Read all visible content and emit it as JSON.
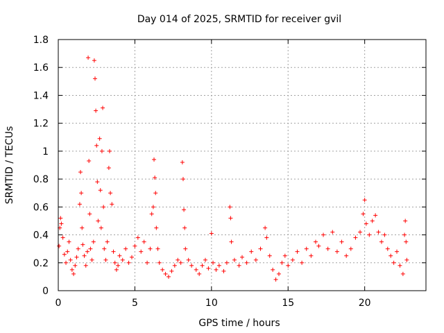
{
  "chart_data": {
    "type": "scatter",
    "title": "Day 014 of 2025, SRMTID for receiver gvil",
    "xlabel": "GPS time / hours",
    "ylabel": "SRMTID / TECUs",
    "xlim": [
      0,
      24
    ],
    "ylim": [
      0,
      1.8
    ],
    "xticks": [
      0,
      5,
      10,
      15,
      20
    ],
    "xtick_labels": [
      "0",
      "5",
      "10",
      "15",
      "20"
    ],
    "yticks": [
      0,
      0.2,
      0.4,
      0.6,
      0.8,
      1.0,
      1.2,
      1.4,
      1.6,
      1.8
    ],
    "ytick_labels": [
      "0",
      "0.2",
      "0.4",
      "0.6",
      "0.8",
      "1",
      "1.2",
      "1.4",
      "1.6",
      "1.8"
    ],
    "grid": true,
    "marker": "+",
    "color": "#ff0000",
    "series": [
      {
        "name": "SRMTID",
        "points": [
          [
            0.05,
            0.32
          ],
          [
            0.1,
            0.45
          ],
          [
            0.15,
            0.52
          ],
          [
            0.2,
            0.48
          ],
          [
            0.3,
            0.38
          ],
          [
            0.4,
            0.26
          ],
          [
            0.5,
            0.2
          ],
          [
            0.6,
            0.28
          ],
          [
            0.7,
            0.35
          ],
          [
            0.8,
            0.22
          ],
          [
            0.9,
            0.15
          ],
          [
            1.0,
            0.12
          ],
          [
            1.1,
            0.18
          ],
          [
            1.2,
            0.24
          ],
          [
            1.3,
            0.3
          ],
          [
            1.4,
            0.62
          ],
          [
            1.45,
            0.85
          ],
          [
            1.5,
            0.7
          ],
          [
            1.55,
            0.45
          ],
          [
            1.6,
            0.33
          ],
          [
            1.7,
            0.25
          ],
          [
            1.8,
            0.18
          ],
          [
            1.9,
            0.28
          ],
          [
            1.95,
            1.67
          ],
          [
            2.0,
            0.93
          ],
          [
            2.05,
            0.55
          ],
          [
            2.1,
            0.3
          ],
          [
            2.2,
            0.22
          ],
          [
            2.3,
            0.35
          ],
          [
            2.35,
            1.65
          ],
          [
            2.4,
            1.52
          ],
          [
            2.45,
            1.29
          ],
          [
            2.5,
            1.04
          ],
          [
            2.55,
            0.78
          ],
          [
            2.6,
            0.5
          ],
          [
            2.7,
            1.09
          ],
          [
            2.75,
            0.72
          ],
          [
            2.8,
            0.45
          ],
          [
            2.85,
            1.0
          ],
          [
            2.9,
            1.31
          ],
          [
            2.95,
            0.6
          ],
          [
            3.0,
            0.3
          ],
          [
            3.1,
            0.22
          ],
          [
            3.2,
            0.35
          ],
          [
            3.3,
            0.88
          ],
          [
            3.35,
            1.0
          ],
          [
            3.4,
            0.7
          ],
          [
            3.5,
            0.62
          ],
          [
            3.6,
            0.28
          ],
          [
            3.7,
            0.2
          ],
          [
            3.8,
            0.15
          ],
          [
            3.9,
            0.18
          ],
          [
            4.0,
            0.25
          ],
          [
            4.2,
            0.22
          ],
          [
            4.4,
            0.3
          ],
          [
            4.6,
            0.2
          ],
          [
            4.8,
            0.24
          ],
          [
            5.0,
            0.32
          ],
          [
            5.2,
            0.38
          ],
          [
            5.4,
            0.28
          ],
          [
            5.6,
            0.35
          ],
          [
            5.8,
            0.2
          ],
          [
            6.0,
            0.3
          ],
          [
            6.1,
            0.55
          ],
          [
            6.2,
            0.6
          ],
          [
            6.25,
            0.94
          ],
          [
            6.3,
            0.81
          ],
          [
            6.35,
            0.7
          ],
          [
            6.4,
            0.45
          ],
          [
            6.5,
            0.3
          ],
          [
            6.6,
            0.2
          ],
          [
            6.8,
            0.15
          ],
          [
            7.0,
            0.12
          ],
          [
            7.2,
            0.1
          ],
          [
            7.4,
            0.14
          ],
          [
            7.6,
            0.18
          ],
          [
            7.8,
            0.22
          ],
          [
            8.0,
            0.2
          ],
          [
            8.1,
            0.92
          ],
          [
            8.15,
            0.8
          ],
          [
            8.2,
            0.58
          ],
          [
            8.25,
            0.45
          ],
          [
            8.3,
            0.3
          ],
          [
            8.5,
            0.22
          ],
          [
            8.7,
            0.18
          ],
          [
            9.0,
            0.15
          ],
          [
            9.2,
            0.12
          ],
          [
            9.4,
            0.18
          ],
          [
            9.6,
            0.22
          ],
          [
            9.8,
            0.16
          ],
          [
            10.0,
            0.41
          ],
          [
            10.1,
            0.2
          ],
          [
            10.3,
            0.15
          ],
          [
            10.5,
            0.18
          ],
          [
            10.8,
            0.14
          ],
          [
            11.0,
            0.2
          ],
          [
            11.2,
            0.6
          ],
          [
            11.25,
            0.52
          ],
          [
            11.3,
            0.35
          ],
          [
            11.5,
            0.22
          ],
          [
            11.8,
            0.18
          ],
          [
            12.0,
            0.24
          ],
          [
            12.3,
            0.2
          ],
          [
            12.6,
            0.28
          ],
          [
            12.9,
            0.22
          ],
          [
            13.2,
            0.3
          ],
          [
            13.5,
            0.45
          ],
          [
            13.6,
            0.38
          ],
          [
            13.8,
            0.25
          ],
          [
            14.0,
            0.15
          ],
          [
            14.2,
            0.08
          ],
          [
            14.4,
            0.12
          ],
          [
            14.6,
            0.2
          ],
          [
            14.8,
            0.25
          ],
          [
            15.0,
            0.18
          ],
          [
            15.3,
            0.22
          ],
          [
            15.6,
            0.28
          ],
          [
            15.9,
            0.2
          ],
          [
            16.2,
            0.3
          ],
          [
            16.5,
            0.25
          ],
          [
            16.8,
            0.35
          ],
          [
            17.0,
            0.32
          ],
          [
            17.3,
            0.4
          ],
          [
            17.6,
            0.3
          ],
          [
            17.9,
            0.42
          ],
          [
            18.2,
            0.28
          ],
          [
            18.5,
            0.35
          ],
          [
            18.8,
            0.25
          ],
          [
            19.1,
            0.3
          ],
          [
            19.4,
            0.38
          ],
          [
            19.7,
            0.42
          ],
          [
            19.9,
            0.55
          ],
          [
            20.0,
            0.65
          ],
          [
            20.1,
            0.48
          ],
          [
            20.3,
            0.4
          ],
          [
            20.5,
            0.5
          ],
          [
            20.7,
            0.54
          ],
          [
            20.9,
            0.42
          ],
          [
            21.1,
            0.35
          ],
          [
            21.3,
            0.4
          ],
          [
            21.5,
            0.3
          ],
          [
            21.7,
            0.25
          ],
          [
            21.9,
            0.2
          ],
          [
            22.1,
            0.28
          ],
          [
            22.3,
            0.18
          ],
          [
            22.5,
            0.12
          ],
          [
            22.6,
            0.4
          ],
          [
            22.65,
            0.5
          ],
          [
            22.7,
            0.35
          ],
          [
            22.75,
            0.22
          ]
        ]
      }
    ]
  }
}
